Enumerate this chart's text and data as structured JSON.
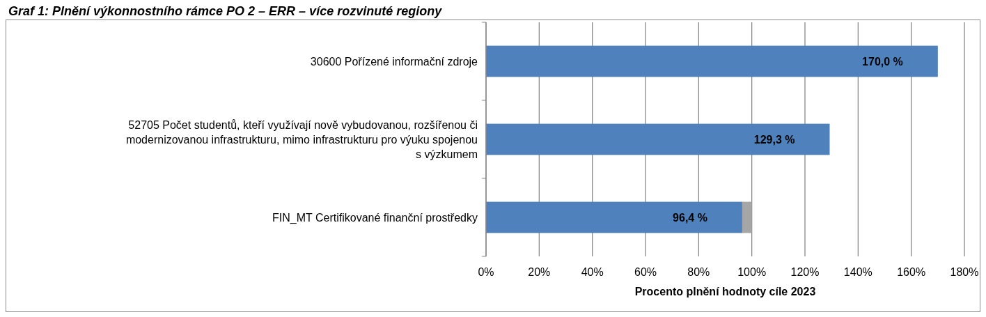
{
  "chart_data": {
    "type": "bar",
    "orientation": "horizontal",
    "stacked": true,
    "title": "Graf 1: Plnění výkonnostního rámce PO 2 – ERR – více rozvinuté regiony",
    "categories": [
      "30600 Pořízené informační zdroje",
      "52705 Počet studentů, kteří využívají nově vybudovanou, rozšířenou či modernizovanou infrastrukturu, mimo infrastrukturu pro výuku spojenou s výzkumem",
      "FIN_MT Certifikované finanční prostředky"
    ],
    "series": [
      {
        "color": "#4f81bd",
        "values": [
          170.0,
          129.3,
          96.4
        ],
        "value_labels": [
          "170,0 %",
          "129,3 %",
          "96,4 %"
        ]
      },
      {
        "color": "#a6a6a6",
        "values": [
          null,
          null,
          3.6
        ]
      }
    ],
    "xlim": [
      0,
      180
    ],
    "xticks": [
      {
        "value": 0,
        "label": "0%"
      },
      {
        "value": 20,
        "label": "20%"
      },
      {
        "value": 40,
        "label": "40%"
      },
      {
        "value": 60,
        "label": "60%"
      },
      {
        "value": 80,
        "label": "80%"
      },
      {
        "value": 100,
        "label": "100%"
      },
      {
        "value": 120,
        "label": "120%"
      },
      {
        "value": 140,
        "label": "140%"
      },
      {
        "value": 160,
        "label": "160%"
      },
      {
        "value": 180,
        "label": "180%"
      }
    ],
    "xlabel": "Procento plnění hodnoty cíle 2023",
    "grid": "x"
  }
}
